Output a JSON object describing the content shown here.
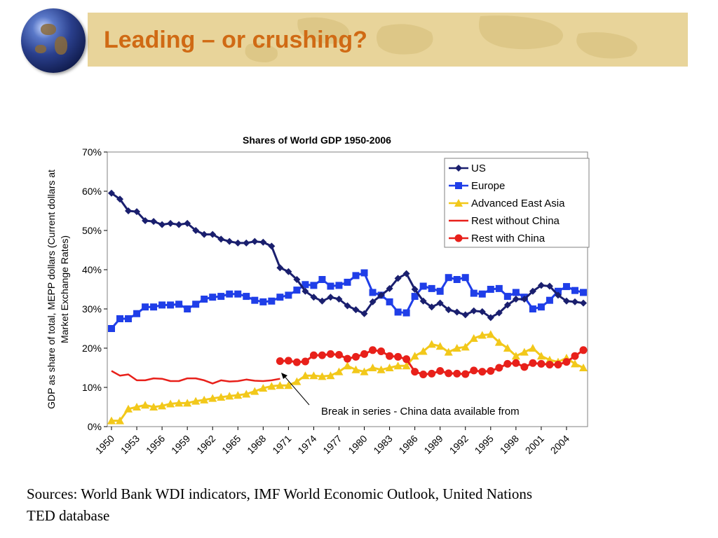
{
  "slide": {
    "title": "Leading – or crushing?",
    "sources": "Sources: World Bank WDI indicators, IMF World Economic Outlook, United Nations TED database"
  },
  "chart_data": {
    "type": "line",
    "title": "Shares of World GDP 1950-2006",
    "ylabel": "GDP as share of total, MEPP dollars (Current dollars at Market Exchange Rates)",
    "xlabel": "",
    "ylim": [
      0,
      70
    ],
    "y_ticks": [
      "0%",
      "10%",
      "20%",
      "30%",
      "40%",
      "50%",
      "60%",
      "70%"
    ],
    "x_tick_labels": [
      "1950",
      "1953",
      "1956",
      "1959",
      "1962",
      "1965",
      "1968",
      "1971",
      "1974",
      "1977",
      "1980",
      "1983",
      "1986",
      "1989",
      "1992",
      "1995",
      "1998",
      "2001",
      "2004"
    ],
    "legend_position": "top-right",
    "annotation": "Break in series - China data available from",
    "series": [
      {
        "name": "US",
        "color": "#1a1f6e",
        "marker": "diamond",
        "start_year": 1950,
        "values": [
          59.5,
          58,
          55,
          54.8,
          52.5,
          52.3,
          51.5,
          51.8,
          51.5,
          51.8,
          50,
          49,
          49,
          47.8,
          47.2,
          46.8,
          46.8,
          47.2,
          47,
          46,
          40.5,
          39.5,
          37.5,
          34.5,
          33,
          32,
          33,
          32.5,
          30.8,
          29.8,
          28.8,
          31.8,
          33.5,
          35.2,
          37.8,
          39,
          35,
          32,
          30.5,
          31.5,
          29.8,
          29.2,
          28.5,
          29.5,
          29.3,
          27.8,
          29,
          31,
          32.5,
          32.5,
          34.5,
          36,
          35.8,
          33.5,
          32,
          31.8,
          31.5
        ]
      },
      {
        "name": "Europe",
        "color": "#1f3ee8",
        "marker": "square",
        "start_year": 1950,
        "values": [
          25,
          27.5,
          27.5,
          28.8,
          30.5,
          30.5,
          31,
          31,
          31.2,
          30,
          31.2,
          32.5,
          33,
          33.2,
          33.8,
          33.8,
          33.2,
          32.2,
          31.8,
          32,
          33,
          33.5,
          34.8,
          36.2,
          36,
          37.5,
          35.8,
          36,
          36.8,
          38.5,
          39.2,
          34.2,
          33.5,
          31.8,
          29.2,
          29,
          33.2,
          35.8,
          35.2,
          34.5,
          38,
          37.5,
          38,
          34,
          33.8,
          35,
          35.2,
          33.2,
          34.2,
          33,
          30,
          30.5,
          32.2,
          34.5,
          35.7,
          34.7,
          34.2
        ]
      },
      {
        "name": "Advanced East Asia",
        "color": "#f2c81a",
        "marker": "triangle",
        "start_year": 1950,
        "values": [
          1.5,
          1.5,
          4.5,
          5,
          5.5,
          5,
          5.3,
          5.8,
          6,
          6,
          6.5,
          6.8,
          7.2,
          7.5,
          7.8,
          8,
          8.3,
          9,
          9.8,
          10.3,
          10.5,
          10.5,
          11.5,
          13,
          13,
          12.8,
          13,
          14,
          15.5,
          14.5,
          14,
          15,
          14.5,
          15,
          15.5,
          15.5,
          18,
          19.2,
          21,
          20.5,
          19,
          20,
          20.3,
          22.5,
          23.3,
          23.5,
          21.5,
          20,
          18,
          19,
          20,
          18,
          17,
          16.5,
          17.5,
          16,
          15
        ]
      },
      {
        "name": "Rest without China",
        "color": "#e8201a",
        "marker": "none",
        "start_year": 1950,
        "values": [
          14.2,
          13,
          13.3,
          11.8,
          11.8,
          12.3,
          12.2,
          11.6,
          11.6,
          12.3,
          12.3,
          11.8,
          11,
          11.8,
          11.5,
          11.6,
          12,
          11.7,
          11.6,
          11.8,
          12.2
        ]
      },
      {
        "name": "Rest with China",
        "color": "#e8201a",
        "marker": "circle",
        "start_year": 1970,
        "values": [
          16.7,
          16.8,
          16.4,
          16.6,
          18.2,
          18.2,
          18.5,
          18.3,
          17.3,
          17.8,
          18.5,
          19.5,
          19.2,
          18,
          17.8,
          17.2,
          14,
          13.3,
          13.5,
          14.2,
          13.6,
          13.5,
          13.4,
          14.3,
          14,
          14.2,
          15,
          16,
          16.2,
          15.2,
          16.2,
          16,
          15.8,
          15.8,
          16.5,
          18,
          19.5
        ]
      }
    ]
  }
}
